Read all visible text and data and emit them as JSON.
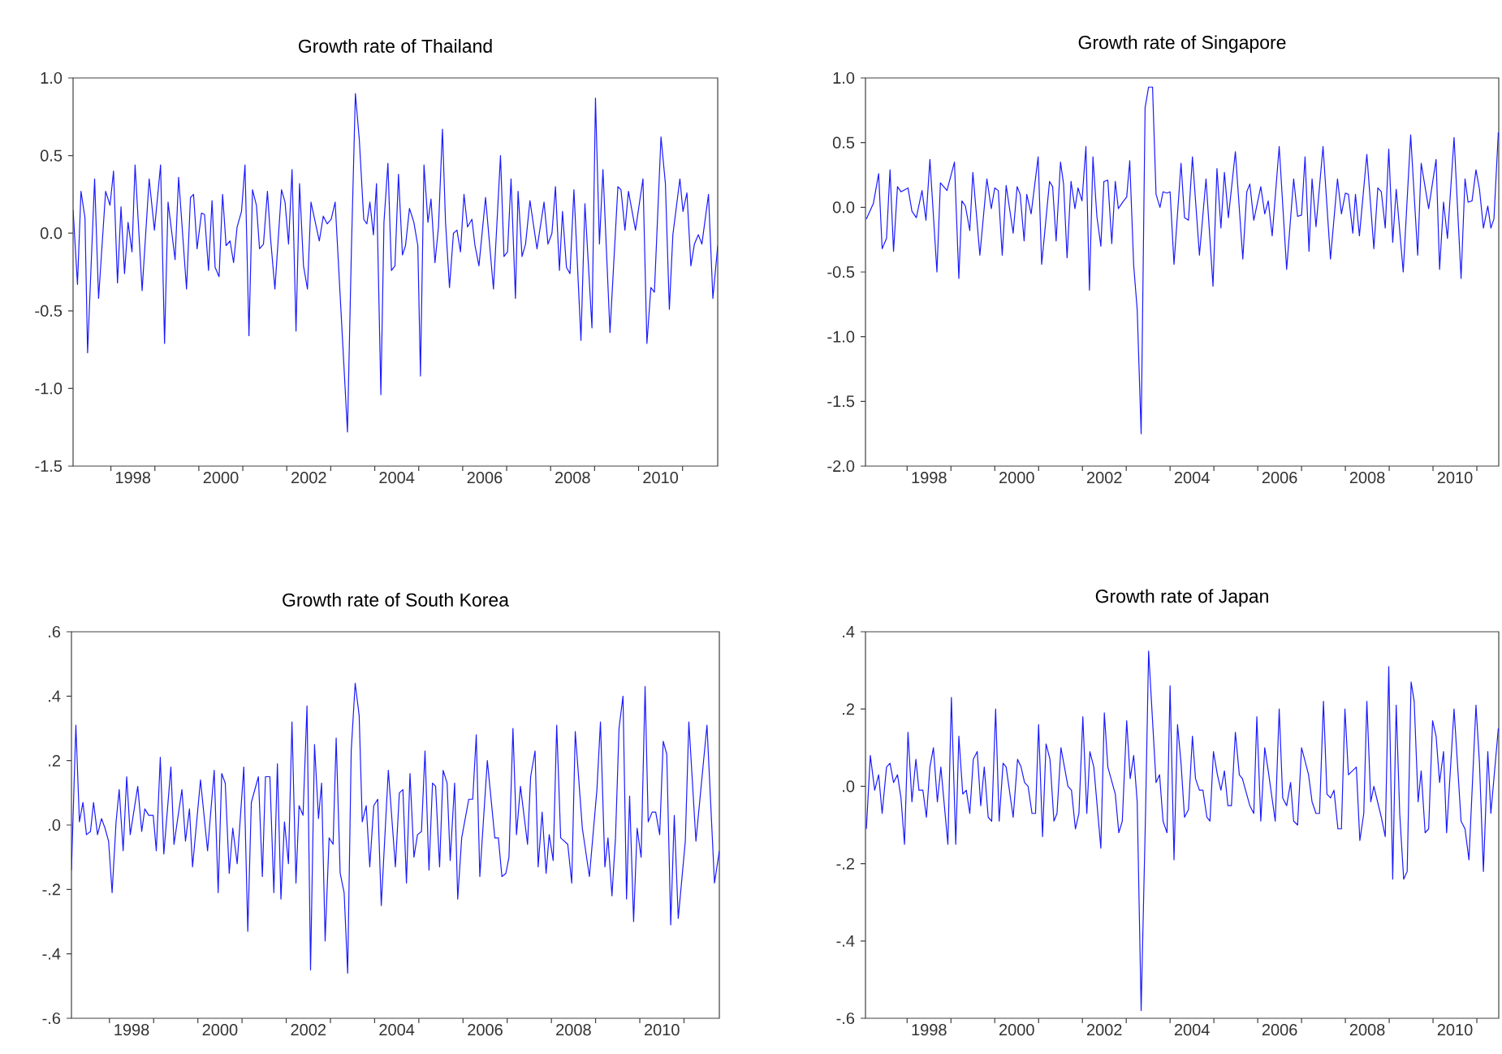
{
  "chart_data": [
    {
      "type": "line",
      "title": "Growth rate of Thailand",
      "color": "#1a1aff",
      "xlim": [
        1997.14,
        2011.8
      ],
      "ylim": [
        -1.5,
        1.0
      ],
      "xticks": [
        {
          "value": 1998,
          "label": null
        },
        {
          "value": 1998.5,
          "label": "1998"
        },
        {
          "value": 1999,
          "label": null
        },
        {
          "value": 2000,
          "label": null
        },
        {
          "value": 2000.5,
          "label": "2000"
        },
        {
          "value": 2001,
          "label": null
        },
        {
          "value": 2002,
          "label": null
        },
        {
          "value": 2002.5,
          "label": "2002"
        },
        {
          "value": 2003,
          "label": null
        },
        {
          "value": 2004,
          "label": null
        },
        {
          "value": 2004.5,
          "label": "2004"
        },
        {
          "value": 2005,
          "label": null
        },
        {
          "value": 2006,
          "label": null
        },
        {
          "value": 2006.5,
          "label": "2006"
        },
        {
          "value": 2007,
          "label": null
        },
        {
          "value": 2008,
          "label": null
        },
        {
          "value": 2008.5,
          "label": "2008"
        },
        {
          "value": 2009,
          "label": null
        },
        {
          "value": 2010,
          "label": null
        },
        {
          "value": 2010.5,
          "label": "2010"
        },
        {
          "value": 2011,
          "label": null
        }
      ],
      "yticks": [
        {
          "value": -1.5,
          "label": "-1.5"
        },
        {
          "value": -1.0,
          "label": "-1.0"
        },
        {
          "value": -0.5,
          "label": "-0.5"
        },
        {
          "value": 0.0,
          "label": "0.0"
        },
        {
          "value": 0.5,
          "label": "0.5"
        },
        {
          "value": 1.0,
          "label": "1.0"
        }
      ],
      "x": [
        1997.14,
        1997.24,
        1997.32,
        1997.41,
        1997.47,
        1997.63,
        1997.72,
        1997.88,
        1997.98,
        1998.06,
        1998.15,
        1998.23,
        1998.31,
        1998.39,
        1998.48,
        1998.55,
        1998.71,
        1998.87,
        1998.99,
        1999.13,
        1999.22,
        1999.3,
        1999.46,
        1999.54,
        1999.72,
        1999.81,
        1999.88,
        1999.96,
        2000.06,
        2000.13,
        2000.22,
        2000.3,
        2000.37,
        2000.46,
        2000.54,
        2000.62,
        2000.71,
        2000.79,
        2000.87,
        2000.97,
        2001.05,
        2001.14,
        2001.22,
        2001.31,
        2001.38,
        2001.47,
        2001.56,
        2001.63,
        2001.73,
        2001.88,
        2001.96,
        2002.04,
        2002.12,
        2002.21,
        2002.29,
        2002.38,
        2002.47,
        2002.55,
        2002.74,
        2002.83,
        2002.92,
        2003.01,
        2003.1,
        2003.38,
        2003.47,
        2003.56,
        2003.65,
        2003.75,
        2003.82,
        2003.89,
        2003.97,
        2004.04,
        2004.14,
        2004.21,
        2004.3,
        2004.38,
        2004.46,
        2004.54,
        2004.63,
        2004.7,
        2004.79,
        2004.89,
        2004.98,
        2005.04,
        2005.12,
        2005.21,
        2005.28,
        2005.37,
        2005.45,
        2005.54,
        2005.61,
        2005.7,
        2005.79,
        2005.87,
        2005.95,
        2006.03,
        2006.11,
        2006.21,
        2006.28,
        2006.37,
        2006.52,
        2006.7,
        2006.86,
        2006.94,
        2007.02,
        2007.1,
        2007.2,
        2007.26,
        2007.35,
        2007.43,
        2007.53,
        2007.69,
        2007.85,
        2007.94,
        2008.03,
        2008.11,
        2008.2,
        2008.27,
        2008.36,
        2008.44,
        2008.53,
        2008.69,
        2008.78,
        2008.94,
        2009.02,
        2009.11,
        2009.19,
        2009.35,
        2009.53,
        2009.6,
        2009.69,
        2009.77,
        2009.93,
        2010.1,
        2010.19,
        2010.28,
        2010.36,
        2010.51,
        2010.61,
        2010.7,
        2010.78,
        2010.94,
        2011.01,
        2011.1,
        2011.19,
        2011.27,
        2011.36,
        2011.44,
        2011.59,
        2011.69,
        2011.8
      ],
      "values": [
        0.15,
        -0.33,
        0.27,
        0.1,
        -0.77,
        0.35,
        -0.42,
        0.27,
        0.18,
        0.4,
        -0.32,
        0.17,
        -0.26,
        0.07,
        -0.12,
        0.44,
        -0.37,
        0.35,
        0.02,
        0.44,
        -0.71,
        0.2,
        -0.17,
        0.36,
        -0.36,
        0.23,
        0.25,
        -0.1,
        0.13,
        0.12,
        -0.24,
        0.21,
        -0.22,
        -0.28,
        0.25,
        -0.08,
        -0.05,
        -0.19,
        0.04,
        0.14,
        0.44,
        -0.66,
        0.28,
        0.18,
        -0.1,
        -0.07,
        0.27,
        -0.03,
        -0.36,
        0.28,
        0.2,
        -0.07,
        0.41,
        -0.63,
        0.32,
        -0.21,
        -0.36,
        0.2,
        -0.05,
        0.11,
        0.06,
        0.09,
        0.2,
        -1.28,
        -0.1,
        0.9,
        0.6,
        0.09,
        0.06,
        0.2,
        -0.01,
        0.32,
        -1.04,
        0.07,
        0.45,
        -0.24,
        -0.21,
        0.38,
        -0.14,
        -0.08,
        0.16,
        0.07,
        -0.08,
        -0.92,
        0.44,
        0.07,
        0.22,
        -0.19,
        0.04,
        0.67,
        0.07,
        -0.35,
        0.0,
        0.02,
        -0.12,
        0.25,
        0.04,
        0.09,
        -0.08,
        -0.21,
        0.23,
        -0.36,
        0.5,
        -0.15,
        -0.12,
        0.35,
        -0.42,
        0.27,
        -0.15,
        -0.07,
        0.21,
        -0.1,
        0.2,
        -0.07,
        0.0,
        0.3,
        -0.24,
        0.14,
        -0.22,
        -0.26,
        0.28,
        -0.69,
        0.19,
        -0.61,
        0.87,
        -0.07,
        0.41,
        -0.64,
        0.3,
        0.28,
        0.02,
        0.27,
        0.02,
        0.35,
        -0.71,
        -0.35,
        -0.38,
        0.62,
        0.32,
        -0.49,
        -0.01,
        0.35,
        0.14,
        0.26,
        -0.21,
        -0.07,
        -0.01,
        -0.07,
        0.25,
        -0.42,
        -0.08
      ]
    },
    {
      "type": "line",
      "title": "Growth rate of Singapore",
      "color": "#1a1aff",
      "xlim": [
        1997.05,
        2011.5
      ],
      "ylim": [
        -2.0,
        1.0
      ],
      "xticks": [
        {
          "value": 1998,
          "label": null
        },
        {
          "value": 1998.5,
          "label": "1998"
        },
        {
          "value": 1999,
          "label": null
        },
        {
          "value": 2000,
          "label": null
        },
        {
          "value": 2000.5,
          "label": "2000"
        },
        {
          "value": 2001,
          "label": null
        },
        {
          "value": 2002,
          "label": null
        },
        {
          "value": 2002.5,
          "label": "2002"
        },
        {
          "value": 2003,
          "label": null
        },
        {
          "value": 2004,
          "label": null
        },
        {
          "value": 2004.5,
          "label": "2004"
        },
        {
          "value": 2005,
          "label": null
        },
        {
          "value": 2006,
          "label": null
        },
        {
          "value": 2006.5,
          "label": "2006"
        },
        {
          "value": 2007,
          "label": null
        },
        {
          "value": 2008,
          "label": null
        },
        {
          "value": 2008.5,
          "label": "2008"
        },
        {
          "value": 2009,
          "label": null
        },
        {
          "value": 2010,
          "label": null
        },
        {
          "value": 2010.5,
          "label": "2010"
        },
        {
          "value": 2011,
          "label": null
        }
      ],
      "yticks": [
        {
          "value": -2.0,
          "label": "-2.0"
        },
        {
          "value": -1.5,
          "label": "-1.5"
        },
        {
          "value": -1.0,
          "label": "-1.0"
        },
        {
          "value": -0.5,
          "label": "-0.5"
        },
        {
          "value": 0.0,
          "label": "0.0"
        },
        {
          "value": 0.5,
          "label": "0.5"
        },
        {
          "value": 1.0,
          "label": "1.0"
        }
      ],
      "x": [
        1997.07,
        1997.23,
        1997.35,
        1997.43,
        1997.53,
        1997.61,
        1997.69,
        1997.78,
        1997.86,
        1998.02,
        1998.11,
        1998.21,
        1998.34,
        1998.43,
        1998.52,
        1998.68,
        1998.76,
        1998.91,
        1999.08,
        1999.18,
        1999.25,
        1999.33,
        1999.43,
        1999.5,
        1999.66,
        1999.82,
        1999.92,
        2000.0,
        2000.08,
        2000.17,
        2000.26,
        2000.42,
        2000.51,
        2000.58,
        2000.67,
        2000.73,
        2000.83,
        2000.99,
        2001.07,
        2001.25,
        2001.32,
        2001.4,
        2001.5,
        2001.57,
        2001.65,
        2001.74,
        2001.83,
        2001.9,
        2001.99,
        2002.08,
        2002.16,
        2002.24,
        2002.33,
        2002.42,
        2002.49,
        2002.58,
        2002.67,
        2002.75,
        2002.82,
        2002.92,
        2003.01,
        2003.08,
        2003.17,
        2003.25,
        2003.34,
        2003.43,
        2003.51,
        2003.6,
        2003.68,
        2003.77,
        2003.84,
        2003.93,
        2004.0,
        2004.09,
        2004.25,
        2004.33,
        2004.42,
        2004.51,
        2004.67,
        2004.82,
        2004.98,
        2005.07,
        2005.16,
        2005.24,
        2005.33,
        2005.49,
        2005.66,
        2005.75,
        2005.82,
        2005.91,
        2006.07,
        2006.16,
        2006.24,
        2006.33,
        2006.49,
        2006.66,
        2006.82,
        2006.91,
        2007.0,
        2007.08,
        2007.17,
        2007.24,
        2007.33,
        2007.49,
        2007.66,
        2007.82,
        2007.91,
        2008.0,
        2008.07,
        2008.17,
        2008.23,
        2008.32,
        2008.49,
        2008.65,
        2008.74,
        2008.82,
        2008.91,
        2008.99,
        2009.08,
        2009.16,
        2009.32,
        2009.49,
        2009.65,
        2009.73,
        2009.9,
        2010.07,
        2010.15,
        2010.24,
        2010.33,
        2010.48,
        2010.64,
        2010.73,
        2010.8,
        2010.89,
        2010.98,
        2011.06,
        2011.15,
        2011.25,
        2011.32,
        2011.39,
        2011.49
      ],
      "values": [
        -0.09,
        0.03,
        0.26,
        -0.32,
        -0.24,
        0.29,
        -0.34,
        0.16,
        0.12,
        0.15,
        -0.03,
        -0.08,
        0.13,
        -0.1,
        0.37,
        -0.5,
        0.19,
        0.13,
        0.35,
        -0.55,
        0.05,
        0.01,
        -0.18,
        0.27,
        -0.37,
        0.22,
        -0.01,
        0.15,
        0.13,
        -0.37,
        0.17,
        -0.2,
        0.16,
        0.1,
        -0.26,
        0.1,
        -0.05,
        0.39,
        -0.44,
        0.2,
        0.16,
        -0.26,
        0.35,
        0.18,
        -0.39,
        0.2,
        -0.01,
        0.15,
        0.05,
        0.47,
        -0.64,
        0.39,
        -0.07,
        -0.3,
        0.2,
        0.21,
        -0.28,
        0.2,
        -0.01,
        0.04,
        0.08,
        0.36,
        -0.45,
        -0.79,
        -1.75,
        0.77,
        0.93,
        0.93,
        0.1,
        0.0,
        0.12,
        0.11,
        0.12,
        -0.44,
        0.34,
        -0.08,
        -0.1,
        0.39,
        -0.37,
        0.22,
        -0.61,
        0.3,
        -0.16,
        0.27,
        -0.08,
        0.43,
        -0.4,
        0.12,
        0.18,
        -0.1,
        0.16,
        -0.05,
        0.05,
        -0.22,
        0.47,
        -0.48,
        0.22,
        -0.07,
        -0.06,
        0.39,
        -0.34,
        0.22,
        -0.15,
        0.47,
        -0.4,
        0.22,
        -0.05,
        0.11,
        0.1,
        -0.2,
        0.1,
        -0.22,
        0.41,
        -0.32,
        0.15,
        0.12,
        -0.16,
        0.45,
        -0.27,
        0.14,
        -0.5,
        0.56,
        -0.37,
        0.34,
        -0.01,
        0.37,
        -0.48,
        0.04,
        -0.24,
        0.54,
        -0.55,
        0.22,
        0.04,
        0.05,
        0.29,
        0.14,
        -0.16,
        0.01,
        -0.16,
        -0.09,
        0.58
      ]
    },
    {
      "type": "line",
      "title": "Growth rate of South Korea",
      "color": "#1a1aff",
      "xlim": [
        1997.14,
        2011.8
      ],
      "ylim": [
        -0.6,
        0.6
      ],
      "xticks": [
        {
          "value": 1998,
          "label": null
        },
        {
          "value": 1998.5,
          "label": "1998"
        },
        {
          "value": 1999,
          "label": null
        },
        {
          "value": 2000,
          "label": null
        },
        {
          "value": 2000.5,
          "label": "2000"
        },
        {
          "value": 2001,
          "label": null
        },
        {
          "value": 2002,
          "label": null
        },
        {
          "value": 2002.5,
          "label": "2002"
        },
        {
          "value": 2003,
          "label": null
        },
        {
          "value": 2004,
          "label": null
        },
        {
          "value": 2004.5,
          "label": "2004"
        },
        {
          "value": 2005,
          "label": null
        },
        {
          "value": 2006,
          "label": null
        },
        {
          "value": 2006.5,
          "label": "2006"
        },
        {
          "value": 2007,
          "label": null
        },
        {
          "value": 2008,
          "label": null
        },
        {
          "value": 2008.5,
          "label": "2008"
        },
        {
          "value": 2009,
          "label": null
        },
        {
          "value": 2010,
          "label": null
        },
        {
          "value": 2010.5,
          "label": "2010"
        },
        {
          "value": 2011,
          "label": null
        }
      ],
      "yticks": [
        {
          "value": -0.6,
          "label": "-.6"
        },
        {
          "value": -0.4,
          "label": "-.4"
        },
        {
          "value": -0.2,
          "label": "-.2"
        },
        {
          "value": 0.0,
          "label": ".0"
        },
        {
          "value": 0.2,
          "label": ".2"
        },
        {
          "value": 0.4,
          "label": ".4"
        },
        {
          "value": 0.6,
          "label": ".6"
        }
      ],
      "x": [
        1997.14,
        1997.24,
        1997.32,
        1997.4,
        1997.48,
        1997.57,
        1997.64,
        1997.73,
        1997.82,
        1997.9,
        1997.98,
        1998.06,
        1998.15,
        1998.22,
        1998.31,
        1998.39,
        1998.47,
        1998.64,
        1998.73,
        1998.8,
        1998.89,
        1998.99,
        1999.06,
        1999.15,
        1999.23,
        1999.39,
        1999.46,
        1999.64,
        1999.72,
        1999.81,
        1999.88,
        2000.06,
        2000.22,
        2000.37,
        2000.46,
        2000.54,
        2000.62,
        2000.71,
        2000.79,
        2000.89,
        2001.04,
        2001.13,
        2001.21,
        2001.37,
        2001.46,
        2001.53,
        2001.63,
        2001.72,
        2001.8,
        2001.88,
        2001.96,
        2002.05,
        2002.13,
        2002.22,
        2002.29,
        2002.38,
        2002.47,
        2002.55,
        2002.64,
        2002.73,
        2002.8,
        2002.88,
        2002.97,
        2003.06,
        2003.13,
        2003.22,
        2003.31,
        2003.39,
        2003.47,
        2003.56,
        2003.65,
        2003.72,
        2003.81,
        2003.89,
        2003.98,
        2004.07,
        2004.15,
        2004.31,
        2004.47,
        2004.56,
        2004.64,
        2004.72,
        2004.8,
        2004.89,
        2004.97,
        2005.06,
        2005.14,
        2005.23,
        2005.31,
        2005.38,
        2005.47,
        2005.55,
        2005.64,
        2005.71,
        2005.81,
        2005.88,
        2005.97,
        2006.13,
        2006.22,
        2006.3,
        2006.38,
        2006.55,
        2006.72,
        2006.8,
        2006.88,
        2006.97,
        2007.04,
        2007.13,
        2007.21,
        2007.3,
        2007.46,
        2007.53,
        2007.63,
        2007.7,
        2007.79,
        2007.88,
        2007.95,
        2008.04,
        2008.12,
        2008.21,
        2008.37,
        2008.46,
        2008.54,
        2008.7,
        2008.86,
        2009.03,
        2009.11,
        2009.21,
        2009.28,
        2009.37,
        2009.45,
        2009.53,
        2009.62,
        2009.7,
        2009.77,
        2009.86,
        2009.94,
        2010.03,
        2010.12,
        2010.19,
        2010.28,
        2010.36,
        2010.45,
        2010.53,
        2010.61,
        2010.7,
        2010.78,
        2010.87,
        2011.03,
        2011.11,
        2011.27,
        2011.52,
        2011.69,
        2011.8
      ],
      "values": [
        -0.14,
        0.31,
        0.01,
        0.07,
        -0.03,
        -0.02,
        0.07,
        -0.03,
        0.02,
        -0.01,
        -0.05,
        -0.21,
        0.01,
        0.11,
        -0.08,
        0.15,
        -0.03,
        0.12,
        -0.02,
        0.05,
        0.03,
        0.03,
        -0.08,
        0.21,
        -0.09,
        0.18,
        -0.06,
        0.11,
        -0.05,
        0.05,
        -0.13,
        0.14,
        -0.08,
        0.17,
        -0.21,
        0.16,
        0.13,
        -0.15,
        -0.01,
        -0.12,
        0.18,
        -0.33,
        0.07,
        0.15,
        -0.16,
        0.15,
        0.15,
        -0.21,
        0.19,
        -0.23,
        0.01,
        -0.12,
        0.32,
        -0.18,
        0.06,
        0.03,
        0.37,
        -0.45,
        0.25,
        0.02,
        0.13,
        -0.36,
        -0.04,
        -0.06,
        0.27,
        -0.15,
        -0.21,
        -0.46,
        0.23,
        0.44,
        0.34,
        0.01,
        0.06,
        -0.13,
        0.06,
        0.08,
        -0.25,
        0.17,
        -0.13,
        0.1,
        0.11,
        -0.18,
        0.16,
        -0.1,
        -0.03,
        -0.02,
        0.23,
        -0.14,
        0.13,
        0.12,
        -0.13,
        0.17,
        0.13,
        -0.11,
        0.13,
        -0.23,
        -0.04,
        0.08,
        0.08,
        0.28,
        -0.16,
        0.2,
        -0.04,
        -0.04,
        -0.16,
        -0.15,
        -0.1,
        0.3,
        -0.03,
        0.12,
        -0.06,
        0.15,
        0.23,
        -0.13,
        0.04,
        -0.15,
        -0.03,
        -0.11,
        0.31,
        -0.04,
        -0.06,
        -0.18,
        0.29,
        -0.01,
        -0.16,
        0.11,
        0.32,
        -0.13,
        -0.04,
        -0.22,
        -0.04,
        0.3,
        0.4,
        -0.23,
        0.09,
        -0.3,
        -0.01,
        -0.1,
        0.43,
        0.01,
        0.04,
        0.04,
        -0.03,
        0.26,
        0.22,
        -0.31,
        0.03,
        -0.29,
        -0.05,
        0.32,
        -0.05,
        0.31,
        -0.18,
        -0.08
      ]
    },
    {
      "type": "line",
      "title": "Growth rate of Japan",
      "color": "#1a1aff",
      "xlim": [
        1997.05,
        2011.5
      ],
      "ylim": [
        -0.6,
        0.4
      ],
      "xticks": [
        {
          "value": 1998,
          "label": null
        },
        {
          "value": 1998.5,
          "label": "1998"
        },
        {
          "value": 1999,
          "label": null
        },
        {
          "value": 2000,
          "label": null
        },
        {
          "value": 2000.5,
          "label": "2000"
        },
        {
          "value": 2001,
          "label": null
        },
        {
          "value": 2002,
          "label": null
        },
        {
          "value": 2002.5,
          "label": "2002"
        },
        {
          "value": 2003,
          "label": null
        },
        {
          "value": 2004,
          "label": null
        },
        {
          "value": 2004.5,
          "label": "2004"
        },
        {
          "value": 2005,
          "label": null
        },
        {
          "value": 2006,
          "label": null
        },
        {
          "value": 2006.5,
          "label": "2006"
        },
        {
          "value": 2007,
          "label": null
        },
        {
          "value": 2008,
          "label": null
        },
        {
          "value": 2008.5,
          "label": "2008"
        },
        {
          "value": 2009,
          "label": null
        },
        {
          "value": 2010,
          "label": null
        },
        {
          "value": 2010.5,
          "label": "2010"
        },
        {
          "value": 2011,
          "label": null
        }
      ],
      "yticks": [
        {
          "value": -0.6,
          "label": "-.6"
        },
        {
          "value": -0.4,
          "label": "-.4"
        },
        {
          "value": -0.2,
          "label": "-.2"
        },
        {
          "value": 0.0,
          "label": ".0"
        },
        {
          "value": 0.2,
          "label": ".2"
        },
        {
          "value": 0.4,
          "label": ".4"
        }
      ],
      "x": [
        1997.07,
        1997.16,
        1997.26,
        1997.35,
        1997.43,
        1997.53,
        1997.61,
        1997.69,
        1997.78,
        1997.86,
        1997.94,
        1998.02,
        1998.11,
        1998.2,
        1998.27,
        1998.36,
        1998.44,
        1998.52,
        1998.6,
        1998.69,
        1998.77,
        1998.93,
        1999.01,
        1999.11,
        1999.18,
        1999.27,
        1999.35,
        1999.43,
        1999.51,
        1999.6,
        1999.68,
        1999.76,
        1999.85,
        1999.93,
        2000.02,
        2000.1,
        2000.19,
        2000.26,
        2000.42,
        2000.52,
        2000.6,
        2000.68,
        2000.76,
        2000.85,
        2000.93,
        2001.0,
        2001.09,
        2001.17,
        2001.26,
        2001.35,
        2001.42,
        2001.51,
        2001.67,
        2001.75,
        2001.84,
        2001.92,
        2002.01,
        2002.1,
        2002.17,
        2002.26,
        2002.42,
        2002.5,
        2002.58,
        2002.75,
        2002.83,
        2002.91,
        2003.01,
        2003.09,
        2003.17,
        2003.25,
        2003.34,
        2003.44,
        2003.51,
        2003.68,
        2003.76,
        2003.84,
        2003.93,
        2004.0,
        2004.09,
        2004.17,
        2004.25,
        2004.33,
        2004.42,
        2004.51,
        2004.58,
        2004.67,
        2004.75,
        2004.84,
        2004.91,
        2004.99,
        2005.08,
        2005.16,
        2005.24,
        2005.32,
        2005.4,
        2005.49,
        2005.58,
        2005.65,
        2005.82,
        2005.91,
        2005.98,
        2006.07,
        2006.16,
        2006.24,
        2006.4,
        2006.49,
        2006.57,
        2006.66,
        2006.75,
        2006.82,
        2006.91,
        2007.0,
        2007.07,
        2007.16,
        2007.24,
        2007.33,
        2007.41,
        2007.5,
        2007.58,
        2007.66,
        2007.74,
        2007.83,
        2007.91,
        2007.99,
        2008.07,
        2008.25,
        2008.33,
        2008.42,
        2008.49,
        2008.58,
        2008.65,
        2008.82,
        2008.91,
        2008.99,
        2009.08,
        2009.16,
        2009.24,
        2009.33,
        2009.41,
        2009.5,
        2009.57,
        2009.66,
        2009.73,
        2009.82,
        2009.9,
        2009.99,
        2010.07,
        2010.15,
        2010.24,
        2010.31,
        2010.48,
        2010.64,
        2010.73,
        2010.82,
        2010.98,
        2011.06,
        2011.15,
        2011.25,
        2011.32,
        2011.49
      ],
      "values": [
        -0.11,
        0.08,
        -0.01,
        0.03,
        -0.07,
        0.05,
        0.06,
        0.01,
        0.03,
        -0.03,
        -0.15,
        0.14,
        -0.04,
        0.07,
        -0.01,
        -0.01,
        -0.08,
        0.05,
        0.1,
        -0.04,
        0.05,
        -0.15,
        0.23,
        -0.15,
        0.13,
        -0.02,
        -0.01,
        -0.07,
        0.07,
        0.09,
        -0.05,
        0.05,
        -0.08,
        -0.09,
        0.2,
        -0.09,
        0.06,
        0.05,
        -0.08,
        0.07,
        0.05,
        0.01,
        0.0,
        -0.07,
        -0.07,
        0.16,
        -0.13,
        0.11,
        0.07,
        -0.09,
        -0.07,
        0.1,
        0.0,
        -0.01,
        -0.11,
        -0.07,
        0.18,
        -0.07,
        0.09,
        0.05,
        -0.16,
        0.19,
        0.05,
        -0.02,
        -0.12,
        -0.09,
        0.17,
        0.02,
        0.08,
        -0.04,
        -0.58,
        -0.07,
        0.35,
        0.01,
        0.03,
        -0.09,
        -0.12,
        0.26,
        -0.19,
        0.16,
        0.06,
        -0.08,
        -0.06,
        0.13,
        0.02,
        -0.01,
        -0.01,
        -0.08,
        -0.09,
        0.09,
        0.03,
        -0.01,
        0.04,
        -0.05,
        -0.05,
        0.14,
        0.03,
        0.02,
        -0.05,
        -0.07,
        0.18,
        -0.09,
        0.1,
        0.04,
        -0.09,
        0.2,
        -0.03,
        -0.05,
        0.01,
        -0.09,
        -0.1,
        0.1,
        0.07,
        0.03,
        -0.04,
        -0.07,
        -0.07,
        0.22,
        -0.02,
        -0.03,
        -0.01,
        -0.11,
        -0.11,
        0.2,
        0.03,
        0.05,
        -0.14,
        -0.07,
        0.22,
        -0.04,
        0.0,
        -0.08,
        -0.13,
        0.31,
        -0.24,
        0.21,
        -0.07,
        -0.24,
        -0.22,
        0.27,
        0.22,
        -0.04,
        0.04,
        -0.12,
        -0.11,
        0.17,
        0.13,
        0.01,
        0.09,
        -0.12,
        0.2,
        -0.09,
        -0.11,
        -0.19,
        0.21,
        0.06,
        -0.22,
        0.09,
        -0.07,
        0.15
      ]
    }
  ]
}
